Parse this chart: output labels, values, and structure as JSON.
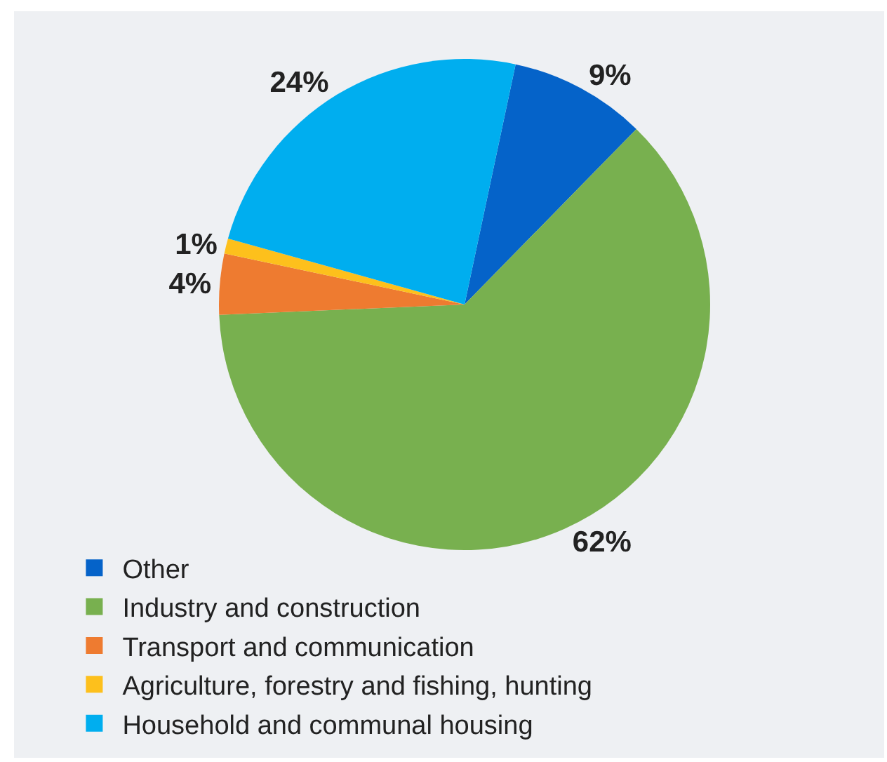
{
  "chart_data": {
    "type": "pie",
    "categories": [
      "Other",
      "Industry and construction",
      "Transport and communication",
      "Agriculture, forestry and fishing, hunting",
      "Household and communal housing"
    ],
    "values": [
      9,
      62,
      4,
      1,
      24
    ],
    "colors": [
      "#0563c9",
      "#78b04f",
      "#ee7b30",
      "#fdc01c",
      "#00aeef"
    ],
    "value_labels": [
      "9%",
      "62%",
      "4%",
      "1%",
      "24%"
    ],
    "legend": "bottom left"
  }
}
